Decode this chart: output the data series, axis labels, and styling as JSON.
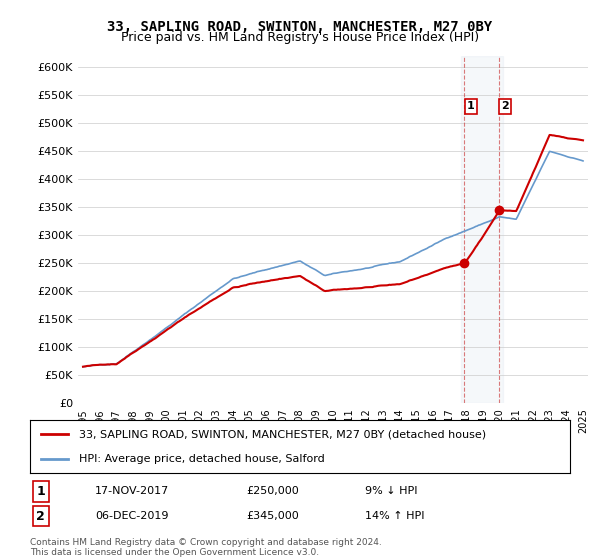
{
  "title1": "33, SAPLING ROAD, SWINTON, MANCHESTER, M27 0BY",
  "title2": "Price paid vs. HM Land Registry's House Price Index (HPI)",
  "legend1": "33, SAPLING ROAD, SWINTON, MANCHESTER, M27 0BY (detached house)",
  "legend2": "HPI: Average price, detached house, Salford",
  "transaction1_date": "17-NOV-2017",
  "transaction1_price": 250000,
  "transaction1_label": "9% ↓ HPI",
  "transaction2_date": "06-DEC-2019",
  "transaction2_price": 345000,
  "transaction2_label": "14% ↑ HPI",
  "copyright": "Contains HM Land Registry data © Crown copyright and database right 2024.\nThis data is licensed under the Open Government Licence v3.0.",
  "hpi_color": "#6699cc",
  "price_color": "#cc0000",
  "highlight_color": "#ccd9e8",
  "marker_color": "#cc0000",
  "ylim_min": 0,
  "ylim_max": 620000,
  "year_start": 1995,
  "year_end": 2025
}
